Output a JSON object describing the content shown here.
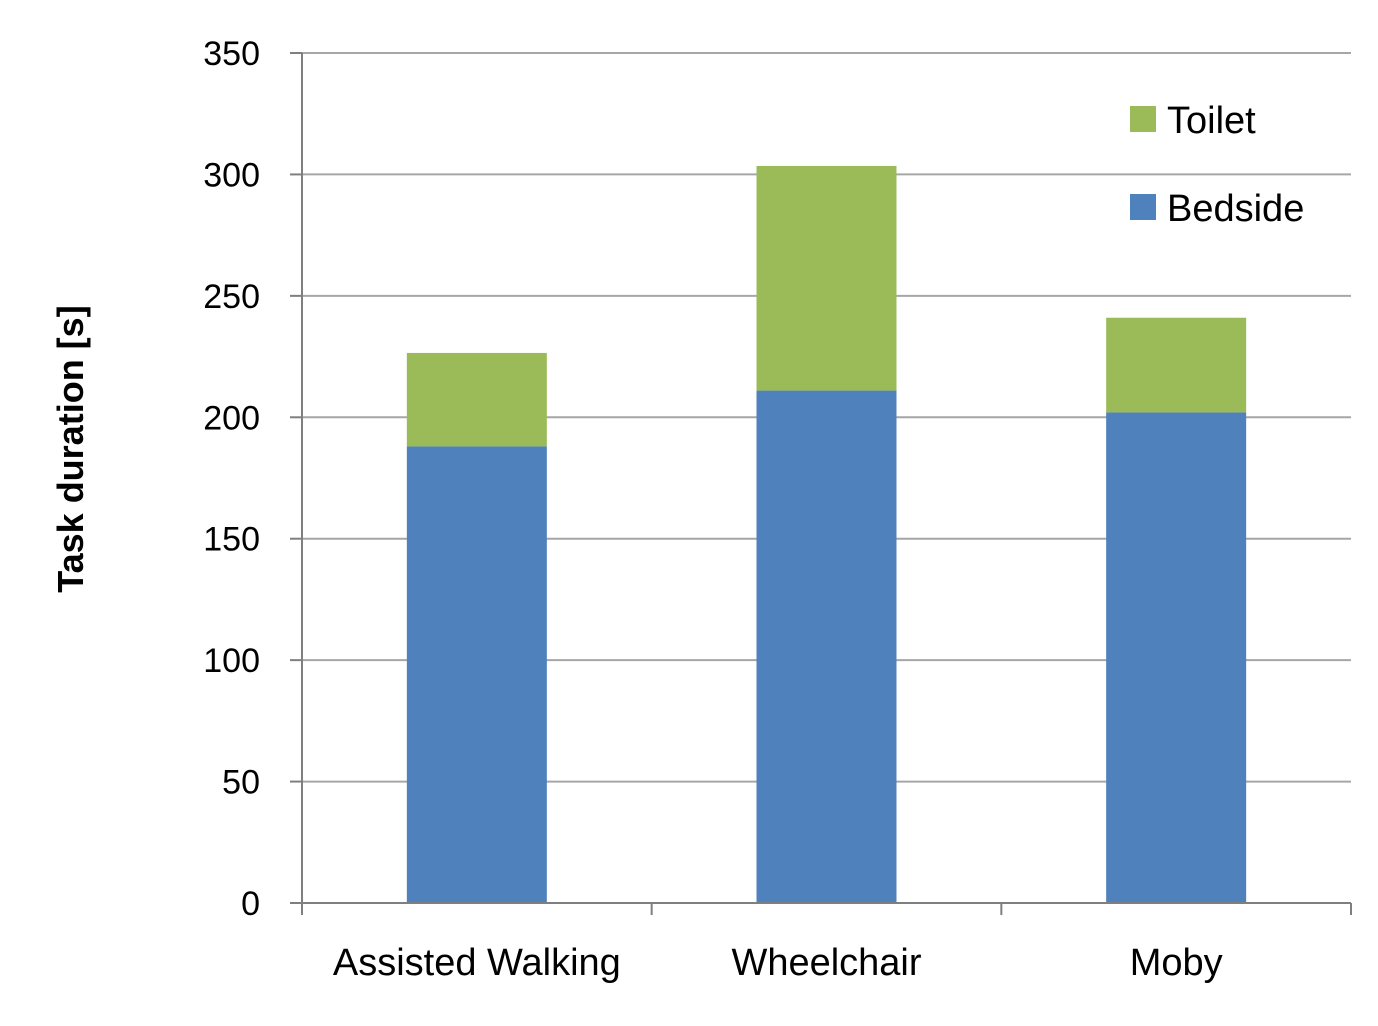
{
  "chart_data": {
    "type": "bar",
    "stacked": true,
    "title": "",
    "xlabel": "",
    "ylabel": "Task duration [s]",
    "ylim": [
      0,
      350
    ],
    "yticks": [
      "0",
      "50",
      "100",
      "150",
      "200",
      "250",
      "300",
      "350"
    ],
    "categories": [
      "Assisted Walking",
      "Wheelchair",
      "Moby"
    ],
    "series": [
      {
        "name": "Bedside",
        "values": [
          188,
          211,
          202
        ],
        "color": "#4f81bd"
      },
      {
        "name": "Toilet",
        "values": [
          38.5,
          92.5,
          39
        ],
        "color": "#9bbb59"
      }
    ],
    "legend_order": [
      "Toilet",
      "Bedside"
    ],
    "legend_position": "top-right",
    "grid": true,
    "grid_color": "#a6a6a6",
    "axis_color": "#7f7f7f"
  }
}
